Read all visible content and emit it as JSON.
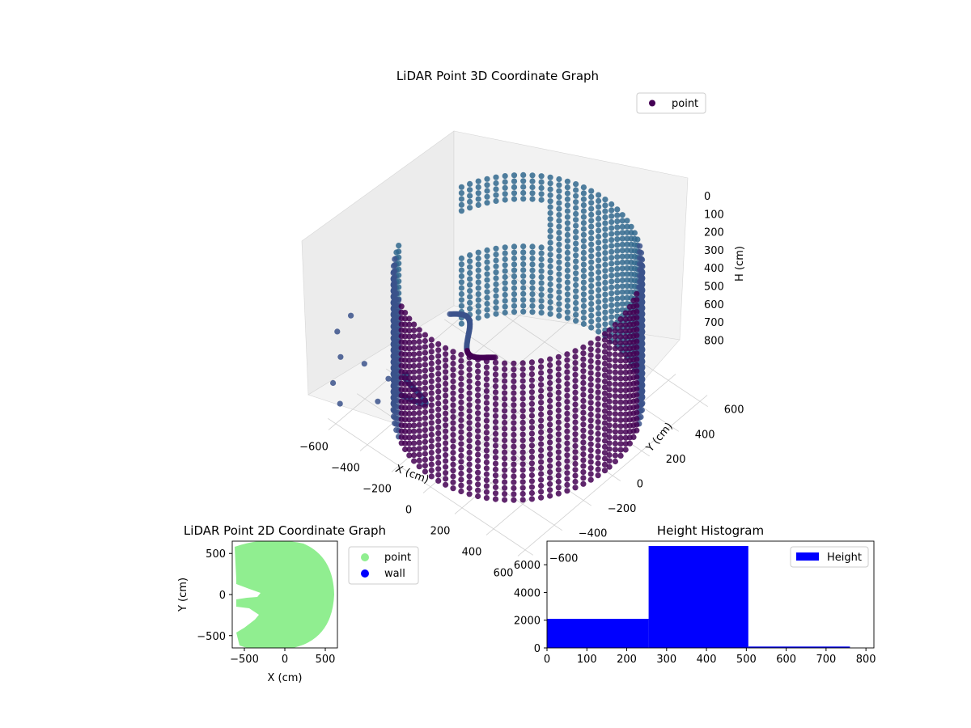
{
  "chart_data": [
    {
      "type": "scatter",
      "projection": "3d",
      "title": "LiDAR Point 3D Coordinate Graph",
      "xlabel": "X (cm)",
      "ylabel": "Y (cm)",
      "zlabel": "H (cm)",
      "xlim": [
        -650,
        650
      ],
      "ylim": [
        -650,
        650
      ],
      "zlim": [
        0,
        820
      ],
      "z_inverted": true,
      "xticks": [
        "−600",
        "−400",
        "−200",
        "0",
        "200",
        "400",
        "600"
      ],
      "yticks": [
        "−600",
        "−400",
        "−200",
        "0",
        "200",
        "400",
        "600"
      ],
      "zticks": [
        "0",
        "100",
        "200",
        "300",
        "400",
        "500",
        "600",
        "700",
        "800"
      ],
      "grid": true,
      "legend": {
        "position": "top-right",
        "entries": [
          "point"
        ]
      },
      "series": [
        {
          "name": "point",
          "shape": "cylindrical wall of points with inner structures",
          "wall_radius": 580,
          "height_range": [
            0,
            820
          ],
          "angular_gap_degrees": [
            160,
            205
          ],
          "stray_points": [
            {
              "x": -560,
              "y": -540,
              "h": 220
            },
            {
              "x": -600,
              "y": -590,
              "h": 300
            },
            {
              "x": -570,
              "y": -600,
              "h": 420
            },
            {
              "x": -590,
              "y": -630,
              "h": 560
            },
            {
              "x": -530,
              "y": -480,
              "h": 520
            },
            {
              "x": -610,
              "y": -560,
              "h": 740
            },
            {
              "x": -500,
              "y": -420,
              "h": 760
            },
            {
              "x": -470,
              "y": -380,
              "h": 640
            }
          ]
        }
      ],
      "colors": {
        "dark": "#440154",
        "mid": "#3b528b",
        "light": "#31688e"
      }
    },
    {
      "type": "scatter",
      "title": "LiDAR Point 2D Coordinate Graph",
      "xlabel": "X (cm)",
      "ylabel": "Y (cm)",
      "xlim": [
        -650,
        650
      ],
      "ylim": [
        -650,
        650
      ],
      "xticks": [
        "−500",
        "0",
        "500"
      ],
      "yticks": [
        "500",
        "0",
        "−500"
      ],
      "legend": {
        "position": "outside-right",
        "entries": [
          "point",
          "wall"
        ]
      },
      "series": [
        {
          "name": "point",
          "color": "#90ee90",
          "shape": "filled disc of radius 600 with notches near x=-500..-250"
        },
        {
          "name": "wall",
          "color": "#0000ff"
        }
      ]
    },
    {
      "type": "bar",
      "subtype": "histogram",
      "title": "Height Histogram",
      "xlabel": "",
      "ylabel": "",
      "bins": [
        {
          "start": 0,
          "end": 255,
          "count": 2100
        },
        {
          "start": 255,
          "end": 505,
          "count": 7350
        },
        {
          "start": 505,
          "end": 760,
          "count": 100
        }
      ],
      "xlim": [
        0,
        820
      ],
      "ylim": [
        0,
        7700
      ],
      "xticks": [
        "0",
        "100",
        "200",
        "300",
        "400",
        "500",
        "600",
        "700",
        "800"
      ],
      "yticks": [
        "0",
        "2000",
        "4000",
        "6000"
      ],
      "legend": {
        "position": "top-right",
        "entries": [
          "Height"
        ]
      },
      "color": "#0000ff"
    }
  ]
}
